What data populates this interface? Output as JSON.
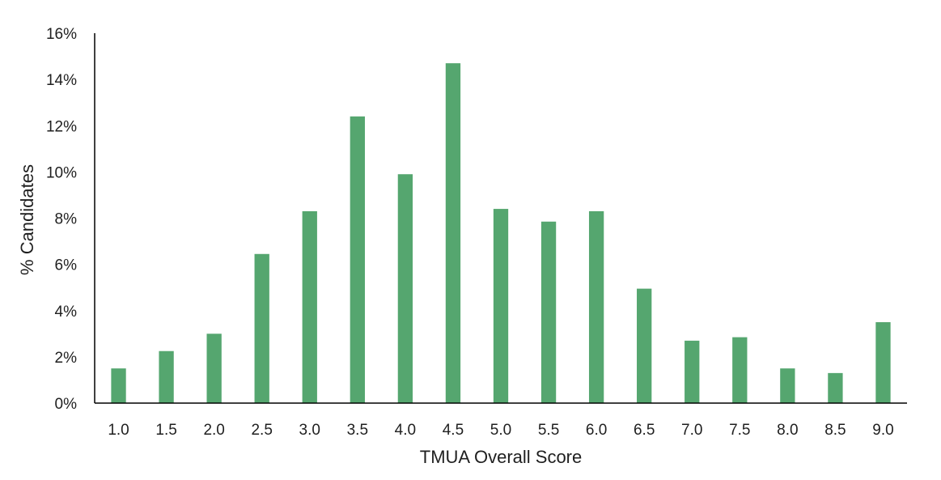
{
  "colors": {
    "bar": "#55a66f",
    "axis": "#000000",
    "text": "#1f1f1f",
    "background": "#ffffff"
  },
  "chart_data": {
    "type": "bar",
    "title": "",
    "xlabel": "TMUA Overall Score",
    "ylabel": "% Candidates",
    "categories": [
      "1.0",
      "1.5",
      "2.0",
      "2.5",
      "3.0",
      "3.5",
      "4.0",
      "4.5",
      "5.0",
      "5.5",
      "6.0",
      "6.5",
      "7.0",
      "7.5",
      "8.0",
      "8.5",
      "9.0"
    ],
    "values": [
      1.5,
      2.25,
      3.0,
      6.45,
      8.3,
      12.4,
      9.9,
      14.7,
      8.4,
      7.85,
      8.3,
      4.95,
      2.7,
      2.85,
      1.5,
      1.3,
      3.5
    ],
    "ylim": [
      0,
      16
    ],
    "yticks": [
      0,
      2,
      4,
      6,
      8,
      10,
      12,
      14,
      16
    ],
    "ytick_labels": [
      "0%",
      "2%",
      "4%",
      "6%",
      "8%",
      "10%",
      "12%",
      "14%",
      "16%"
    ],
    "grid": false,
    "legend": "none"
  }
}
